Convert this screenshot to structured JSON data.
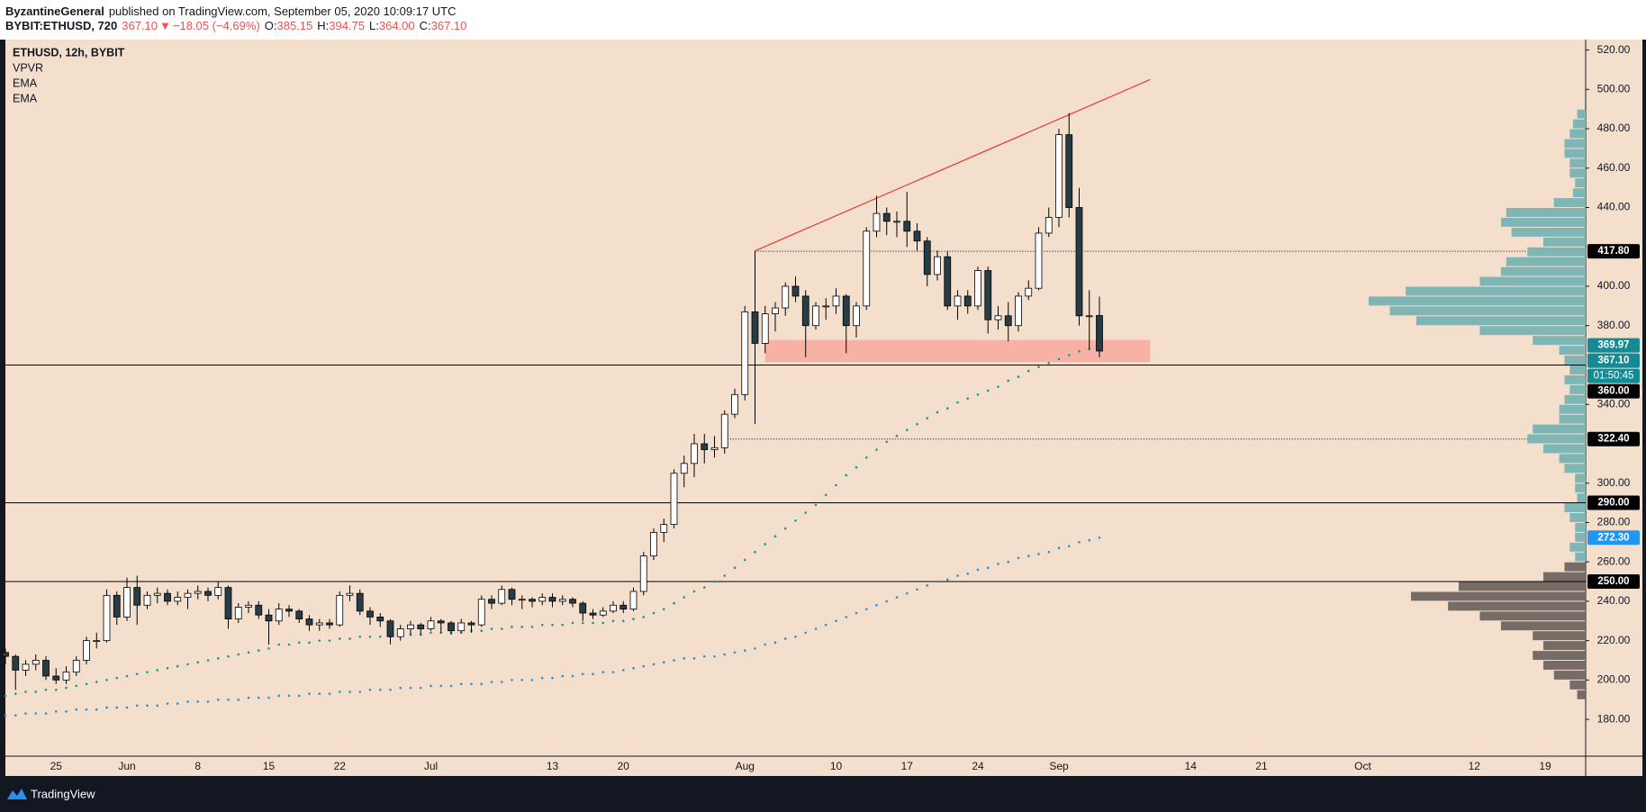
{
  "header": {
    "author": "ByzantineGeneral",
    "published": "published on TradingView.com, September 05, 2020 10:09:17 UTC",
    "quote": {
      "symbol": "BYBIT:ETHUSD, 720",
      "last": "367.10",
      "arrow": "▼",
      "change": "−18.05 (−4.69%)",
      "ohlc": [
        {
          "label": "O:",
          "value": "385.15"
        },
        {
          "label": "H:",
          "value": "394.75"
        },
        {
          "label": "L:",
          "value": "364.00"
        },
        {
          "label": "C:",
          "value": "367.10"
        }
      ],
      "color": "#ef5350"
    }
  },
  "footer": {
    "brand": "TradingView"
  },
  "chart_data": {
    "type": "candlestick",
    "symbol_label": "ETHUSD, 12h, BYBIT",
    "background": "#f3dfcc",
    "up_color": "#ffffff",
    "down_color": "#263d47",
    "wick_color": "#000000",
    "xlim": [
      "2020-05-20",
      "2020-10-23"
    ],
    "xticks": [
      {
        "value": "2020-05-25",
        "label": "25"
      },
      {
        "value": "2020-06-01",
        "label": "Jun"
      },
      {
        "value": "2020-06-08",
        "label": "8"
      },
      {
        "value": "2020-06-15",
        "label": "15"
      },
      {
        "value": "2020-06-22",
        "label": "22"
      },
      {
        "value": "2020-07-01",
        "label": "Jul"
      },
      {
        "value": "2020-07-13",
        "label": "13"
      },
      {
        "value": "2020-07-20",
        "label": "20"
      },
      {
        "value": "2020-08-01",
        "label": "Aug"
      },
      {
        "value": "2020-08-10",
        "label": "10"
      },
      {
        "value": "2020-08-17",
        "label": "17"
      },
      {
        "value": "2020-08-24",
        "label": "24"
      },
      {
        "value": "2020-09-01",
        "label": "Sep"
      },
      {
        "value": "2020-09-14",
        "label": "14"
      },
      {
        "value": "2020-09-21",
        "label": "21"
      },
      {
        "value": "2020-10-01",
        "label": "Oct"
      },
      {
        "value": "2020-10-12",
        "label": "12"
      },
      {
        "value": "2020-10-19",
        "label": "19"
      }
    ],
    "ylim": [
      161.3,
      525.3
    ],
    "yticks": [
      {
        "value": 180,
        "label": "180.00"
      },
      {
        "value": 200,
        "label": "200.00"
      },
      {
        "value": 220,
        "label": "220.00"
      },
      {
        "value": 240,
        "label": "240.00"
      },
      {
        "value": 260,
        "label": "260.00"
      },
      {
        "value": 280,
        "label": "280.00"
      },
      {
        "value": 300,
        "label": "300.00"
      },
      {
        "value": 340,
        "label": "340.00"
      },
      {
        "value": 380,
        "label": "380.00"
      },
      {
        "value": 400,
        "label": "400.00"
      },
      {
        "value": 440,
        "label": "440.00"
      },
      {
        "value": 460,
        "label": "460.00"
      },
      {
        "value": 480,
        "label": "480.00"
      },
      {
        "value": 500,
        "label": "500.00"
      },
      {
        "value": 520,
        "label": "520.00"
      }
    ],
    "x": [
      "2020-05-20",
      "2020-05-21",
      "2020-05-22",
      "2020-05-23",
      "2020-05-24",
      "2020-05-25",
      "2020-05-26",
      "2020-05-27",
      "2020-05-28",
      "2020-05-29",
      "2020-05-30",
      "2020-05-31",
      "2020-06-01",
      "2020-06-02",
      "2020-06-03",
      "2020-06-04",
      "2020-06-05",
      "2020-06-06",
      "2020-06-07",
      "2020-06-08",
      "2020-06-09",
      "2020-06-10",
      "2020-06-11",
      "2020-06-12",
      "2020-06-13",
      "2020-06-14",
      "2020-06-15",
      "2020-06-16",
      "2020-06-17",
      "2020-06-18",
      "2020-06-19",
      "2020-06-20",
      "2020-06-21",
      "2020-06-22",
      "2020-06-23",
      "2020-06-24",
      "2020-06-25",
      "2020-06-26",
      "2020-06-27",
      "2020-06-28",
      "2020-06-29",
      "2020-06-30",
      "2020-07-01",
      "2020-07-02",
      "2020-07-03",
      "2020-07-04",
      "2020-07-05",
      "2020-07-06",
      "2020-07-07",
      "2020-07-08",
      "2020-07-09",
      "2020-07-10",
      "2020-07-11",
      "2020-07-12",
      "2020-07-13",
      "2020-07-14",
      "2020-07-15",
      "2020-07-16",
      "2020-07-17",
      "2020-07-18",
      "2020-07-19",
      "2020-07-20",
      "2020-07-21",
      "2020-07-22",
      "2020-07-23",
      "2020-07-24",
      "2020-07-25",
      "2020-07-26",
      "2020-07-27",
      "2020-07-28",
      "2020-07-29",
      "2020-07-30",
      "2020-07-31",
      "2020-08-01",
      "2020-08-02",
      "2020-08-03",
      "2020-08-04",
      "2020-08-05",
      "2020-08-06",
      "2020-08-07",
      "2020-08-08",
      "2020-08-09",
      "2020-08-10",
      "2020-08-11",
      "2020-08-12",
      "2020-08-13",
      "2020-08-14",
      "2020-08-15",
      "2020-08-16",
      "2020-08-17",
      "2020-08-18",
      "2020-08-19",
      "2020-08-20",
      "2020-08-21",
      "2020-08-22",
      "2020-08-23",
      "2020-08-24",
      "2020-08-25",
      "2020-08-26",
      "2020-08-27",
      "2020-08-28",
      "2020-08-29",
      "2020-08-30",
      "2020-08-31",
      "2020-09-01",
      "2020-09-02",
      "2020-09-03",
      "2020-09-04",
      "2020-09-05"
    ],
    "open": [
      214,
      212,
      205,
      208,
      210,
      202,
      200,
      204,
      210,
      220,
      220,
      243,
      232,
      247,
      238,
      243,
      244,
      240,
      242,
      244,
      245,
      243,
      247,
      231,
      237,
      238,
      233,
      230,
      236,
      235,
      231,
      228,
      229,
      228,
      243,
      244,
      235,
      232,
      230,
      222,
      226,
      228,
      226,
      230,
      229,
      225,
      229,
      228,
      241,
      239,
      246,
      241,
      241,
      240,
      242,
      240,
      241,
      239,
      234,
      233,
      235,
      238,
      236,
      245,
      263,
      275,
      279,
      305,
      310,
      320,
      317,
      318,
      335,
      345,
      387,
      371,
      386,
      389,
      400,
      395,
      380,
      390,
      390,
      395,
      380,
      390,
      428,
      437,
      433,
      433,
      428,
      423,
      406,
      415,
      390,
      395,
      390,
      408,
      383,
      385,
      380,
      395,
      399,
      427,
      435,
      477,
      440,
      385,
      385.15
    ],
    "high": [
      216,
      213,
      210,
      213,
      212,
      206,
      207,
      212,
      222,
      224,
      246,
      245,
      252,
      253,
      245,
      247,
      246,
      245,
      246,
      248,
      247,
      250,
      248,
      239,
      240,
      240,
      236,
      239,
      238,
      236,
      233,
      231,
      231,
      245,
      248,
      246,
      237,
      234,
      231,
      228,
      230,
      229,
      232,
      231,
      230,
      231,
      230,
      243,
      243,
      248,
      247,
      243,
      242,
      244,
      244,
      243,
      242,
      240,
      236,
      237,
      240,
      240,
      247,
      265,
      277,
      282,
      307,
      314,
      325,
      325,
      324,
      337,
      348,
      390,
      418,
      390,
      392,
      402,
      405,
      398,
      392,
      394,
      399,
      396,
      392,
      430,
      446,
      440,
      438,
      448,
      432,
      425,
      418,
      418,
      398,
      398,
      410,
      410,
      390,
      392,
      397,
      403,
      430,
      440,
      480,
      488,
      450,
      398,
      394.75
    ],
    "low": [
      208,
      195,
      202,
      205,
      200,
      198,
      198,
      202,
      208,
      216,
      219,
      228,
      230,
      228,
      236,
      239,
      238,
      238,
      236,
      241,
      240,
      241,
      226,
      229,
      234,
      231,
      218,
      228,
      232,
      229,
      225,
      225,
      226,
      227,
      240,
      233,
      228,
      227,
      218,
      220,
      223,
      223,
      225,
      224,
      223,
      224,
      224,
      227,
      236,
      238,
      238,
      236,
      237,
      238,
      237,
      238,
      237,
      230,
      231,
      232,
      234,
      234,
      235,
      243,
      261,
      270,
      277,
      298,
      303,
      310,
      313,
      315,
      333,
      342,
      330,
      366,
      377,
      385,
      392,
      364,
      378,
      383,
      386,
      366,
      374,
      388,
      425,
      426,
      425,
      420,
      418,
      400,
      403,
      388,
      383,
      386,
      388,
      376,
      378,
      372,
      377,
      393,
      398,
      425,
      430,
      435,
      380,
      368,
      364
    ],
    "close": [
      212,
      205,
      208,
      210,
      202,
      200,
      204,
      210,
      220,
      220,
      243,
      232,
      247,
      238,
      243,
      244,
      240,
      242,
      244,
      245,
      243,
      247,
      231,
      237,
      238,
      233,
      230,
      236,
      235,
      231,
      228,
      229,
      228,
      243,
      244,
      235,
      232,
      230,
      222,
      226,
      228,
      226,
      230,
      229,
      225,
      229,
      228,
      241,
      239,
      246,
      241,
      241,
      240,
      242,
      240,
      241,
      239,
      234,
      233,
      235,
      238,
      236,
      245,
      263,
      275,
      279,
      305,
      310,
      320,
      317,
      318,
      335,
      345,
      387,
      371,
      386,
      389,
      400,
      395,
      380,
      390,
      390,
      395,
      380,
      390,
      428,
      437,
      433,
      433,
      428,
      423,
      406,
      415,
      390,
      395,
      390,
      408,
      383,
      385,
      380,
      395,
      399,
      427,
      435,
      477,
      440,
      385,
      385,
      367.1
    ],
    "series": [
      {
        "name": "EMA",
        "color": "#17998a",
        "values": [
          192,
          193,
          194,
          194,
          195,
          195,
          196,
          197,
          198,
          199,
          200,
          201,
          202,
          203,
          204,
          205,
          206,
          207,
          208,
          209,
          210,
          211,
          212,
          213,
          214,
          215,
          216,
          218,
          218,
          219,
          219,
          220,
          220,
          221,
          221,
          222,
          222,
          222,
          222,
          223,
          223,
          223,
          224,
          224,
          224,
          224,
          225,
          225,
          226,
          226,
          227,
          227,
          227,
          228,
          228,
          228,
          229,
          229,
          229,
          229,
          230,
          230,
          231,
          232,
          234,
          236,
          239,
          242,
          245,
          247,
          250,
          253,
          257,
          261,
          265,
          269,
          273,
          277,
          281,
          285,
          289,
          294,
          299,
          304,
          308,
          313,
          317,
          321,
          324,
          327,
          330,
          333,
          336,
          338,
          341,
          343,
          345,
          347,
          349,
          352,
          354,
          357,
          359,
          361,
          363,
          365,
          367,
          368,
          369.97
        ]
      },
      {
        "name": "EMA",
        "color": "#2b8fd6",
        "values": [
          182,
          182,
          183,
          183,
          183,
          184,
          184,
          185,
          185,
          185,
          186,
          186,
          186,
          187,
          187,
          187,
          188,
          188,
          189,
          189,
          189,
          190,
          190,
          190,
          191,
          191,
          191,
          192,
          192,
          192,
          193,
          193,
          193,
          194,
          194,
          194,
          195,
          195,
          195,
          196,
          196,
          196,
          197,
          197,
          197,
          198,
          198,
          198,
          199,
          199,
          200,
          200,
          200,
          201,
          201,
          202,
          202,
          203,
          203,
          204,
          204,
          205,
          206,
          207,
          208,
          209,
          210,
          211,
          211,
          212,
          212,
          213,
          214,
          215,
          216,
          218,
          219,
          221,
          222,
          224,
          226,
          228,
          230,
          232,
          234,
          236,
          238,
          240,
          242,
          244,
          246,
          248,
          250,
          251,
          253,
          254,
          256,
          257,
          259,
          260,
          262,
          263,
          264,
          265,
          267,
          268,
          270,
          271,
          272.3
        ]
      }
    ],
    "vpvr": {
      "name": "VPVR",
      "profiles": [
        {
          "color": "#776b66",
          "bins": [
            190,
            195,
            200,
            205,
            210,
            215,
            220,
            225,
            230,
            235,
            240,
            245,
            250,
            255,
            260
          ],
          "values": [
            8,
            15,
            30,
            40,
            50,
            40,
            50,
            80,
            100,
            130,
            165,
            120,
            40,
            20
          ]
        },
        {
          "color": "#7fb5b5",
          "bins": [
            260,
            265,
            270,
            275,
            280,
            285,
            290,
            295,
            300,
            305,
            310,
            315,
            320,
            325,
            330,
            335,
            340,
            345,
            350,
            355,
            360,
            365,
            370,
            375,
            380,
            385,
            390,
            395,
            400,
            405,
            410,
            415,
            420,
            425,
            430,
            435,
            440,
            445,
            450,
            455,
            460,
            465,
            470,
            475,
            480,
            485,
            490
          ],
          "values": [
            10,
            15,
            10,
            10,
            15,
            20,
            8,
            10,
            10,
            20,
            25,
            40,
            55,
            50,
            25,
            25,
            20,
            15,
            20,
            15,
            20,
            25,
            50,
            100,
            160,
            185,
            205,
            170,
            100,
            80,
            75,
            55,
            40,
            70,
            80,
            75,
            30,
            12,
            10,
            15,
            15,
            20,
            20,
            15,
            12,
            8
          ]
        }
      ]
    },
    "trendline": {
      "color": "#e53935",
      "x": [
        "2020-08-02",
        "2020-09-10"
      ],
      "values": [
        418,
        505
      ]
    },
    "zone": {
      "color": "#f7aa9e",
      "x": [
        "2020-08-03",
        "2020-09-10"
      ],
      "values": [
        361.5,
        372.7
      ]
    },
    "hlines": [
      {
        "value": 417.8,
        "style": "dotted",
        "from": "2020-08-02"
      },
      {
        "value": 360,
        "style": "solid"
      },
      {
        "value": 322.4,
        "style": "dotted",
        "from": "2020-07-30"
      },
      {
        "value": 290,
        "style": "solid"
      },
      {
        "value": 250,
        "style": "solid"
      }
    ],
    "badges": [
      {
        "value": 417.8,
        "label": "417.80",
        "color": "#000000"
      },
      {
        "value": 369.97,
        "label": "369.97",
        "color": "#138a94"
      },
      {
        "value": 367.1,
        "label": "367.10",
        "color": "#138a94",
        "countdown": "01:50:45"
      },
      {
        "value": 360,
        "label": "360.00",
        "color": "#000000"
      },
      {
        "value": 322.4,
        "label": "322.40",
        "color": "#000000"
      },
      {
        "value": 290,
        "label": "290.00",
        "color": "#000000"
      },
      {
        "value": 272.3,
        "label": "272.30",
        "color": "#2196f3"
      },
      {
        "value": 250,
        "label": "250.00",
        "color": "#000000"
      }
    ]
  }
}
